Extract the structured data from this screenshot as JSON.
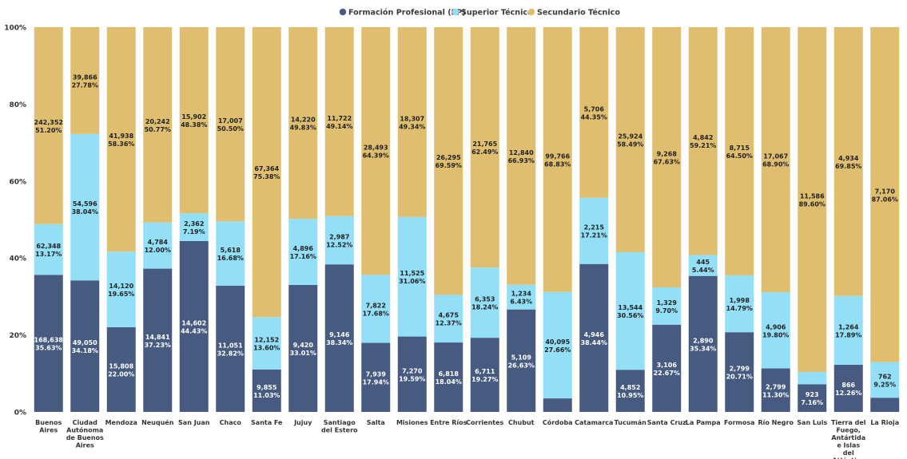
{
  "chart_data": {
    "type": "bar",
    "stacked": true,
    "percent_stacked": true,
    "ylim": [
      0,
      100
    ],
    "y_ticks": [
      "0%",
      "20%",
      "40%",
      "60%",
      "80%",
      "100%"
    ],
    "y_tick_values": [
      0,
      20,
      40,
      60,
      80,
      100
    ],
    "legend_position": "top-center",
    "grid": false,
    "categories": [
      "Buenos Aires",
      "Ciudad Autónoma de Buenos Aires",
      "Mendoza",
      "Neuquén",
      "San Juan",
      "Chaco",
      "Santa Fe",
      "Jujuy",
      "Santiago del Estero",
      "Salta",
      "Misiones",
      "Entre Ríos",
      "Corrientes",
      "Chubut",
      "Córdoba",
      "Catamarca",
      "Tucumán",
      "Santa Cruz",
      "La Pampa",
      "Formosa",
      "Río Negro",
      "San Luis",
      "Tierra del Fuego, Antártida e Islas del Atlántico Sur",
      "La Rioja"
    ],
    "series": [
      {
        "name": "Formación Profesional (FP)",
        "color": "#475b80",
        "values": [
          35.63,
          34.18,
          22.0,
          37.23,
          44.43,
          32.82,
          11.03,
          33.01,
          38.34,
          17.94,
          19.59,
          18.04,
          19.27,
          26.63,
          3.51,
          38.44,
          10.95,
          22.67,
          35.34,
          20.71,
          11.3,
          7.16,
          12.26,
          3.69
        ],
        "counts": [
          "168,638",
          "49,050",
          "15,808",
          "14,841",
          "14,602",
          "11,051",
          "9,855",
          "9,420",
          "9,146",
          "7,939",
          "7,270",
          "6,818",
          "6,711",
          "5,109",
          "",
          "4,946",
          "4,852",
          "3,106",
          "2,890",
          "2,799",
          "2,799",
          "923",
          "866",
          ""
        ],
        "pct_labels": [
          "35.63%",
          "34.18%",
          "22.00%",
          "37.23%",
          "44.43%",
          "32.82%",
          "11.03%",
          "33.01%",
          "38.34%",
          "17.94%",
          "19.59%",
          "18.04%",
          "19.27%",
          "26.63%",
          "",
          "38.44%",
          "10.95%",
          "22.67%",
          "35.34%",
          "20.71%",
          "11.30%",
          "7.16%",
          "12.26%",
          ""
        ]
      },
      {
        "name": "Superior Técnico",
        "color": "#93dff8",
        "values": [
          13.17,
          38.04,
          19.65,
          12.0,
          7.19,
          16.68,
          13.6,
          17.16,
          12.52,
          17.68,
          31.06,
          12.37,
          18.24,
          6.43,
          27.66,
          17.21,
          30.56,
          9.7,
          5.44,
          14.79,
          19.8,
          3.24,
          17.89,
          9.25
        ],
        "counts": [
          "62,348",
          "54,596",
          "14,120",
          "4,784",
          "2,362",
          "5,618",
          "12,152",
          "4,896",
          "2,987",
          "7,822",
          "11,525",
          "4,675",
          "6,353",
          "1,234",
          "40,095",
          "2,215",
          "13,544",
          "1,329",
          "445",
          "1,998",
          "4,906",
          "",
          "1,264",
          "762"
        ],
        "pct_labels": [
          "13.17%",
          "38.04%",
          "19.65%",
          "12.00%",
          "7.19%",
          "16.68%",
          "13.60%",
          "17.16%",
          "12.52%",
          "17.68%",
          "31.06%",
          "12.37%",
          "18.24%",
          "6.43%",
          "27.66%",
          "17.21%",
          "30.56%",
          "9.70%",
          "5.44%",
          "14.79%",
          "19.80%",
          "",
          "17.89%",
          "9.25%"
        ]
      },
      {
        "name": "Secundario Técnico",
        "color": "#dfbe70",
        "values": [
          51.2,
          27.78,
          58.36,
          50.77,
          48.38,
          50.5,
          75.38,
          49.83,
          49.14,
          64.39,
          49.34,
          69.59,
          62.49,
          66.93,
          68.83,
          44.35,
          58.49,
          67.63,
          59.21,
          64.5,
          68.9,
          89.6,
          69.85,
          87.06
        ],
        "counts": [
          "242,352",
          "39,866",
          "41,938",
          "20,242",
          "15,902",
          "17,007",
          "67,364",
          "14,220",
          "11,722",
          "28,493",
          "18,307",
          "26,295",
          "21,765",
          "12,840",
          "99,766",
          "5,706",
          "25,924",
          "9,268",
          "4,842",
          "8,715",
          "17,067",
          "11,586",
          "4,934",
          "7,170"
        ],
        "pct_labels": [
          "51.20%",
          "27.78%",
          "58.36%",
          "50.77%",
          "48.38%",
          "50.50%",
          "75.38%",
          "49.83%",
          "49.14%",
          "64.39%",
          "49.34%",
          "69.59%",
          "62.49%",
          "66.93%",
          "68.83%",
          "44.35%",
          "58.49%",
          "67.63%",
          "59.21%",
          "64.50%",
          "68.90%",
          "89.60%",
          "69.85%",
          "87.06%"
        ]
      }
    ]
  }
}
